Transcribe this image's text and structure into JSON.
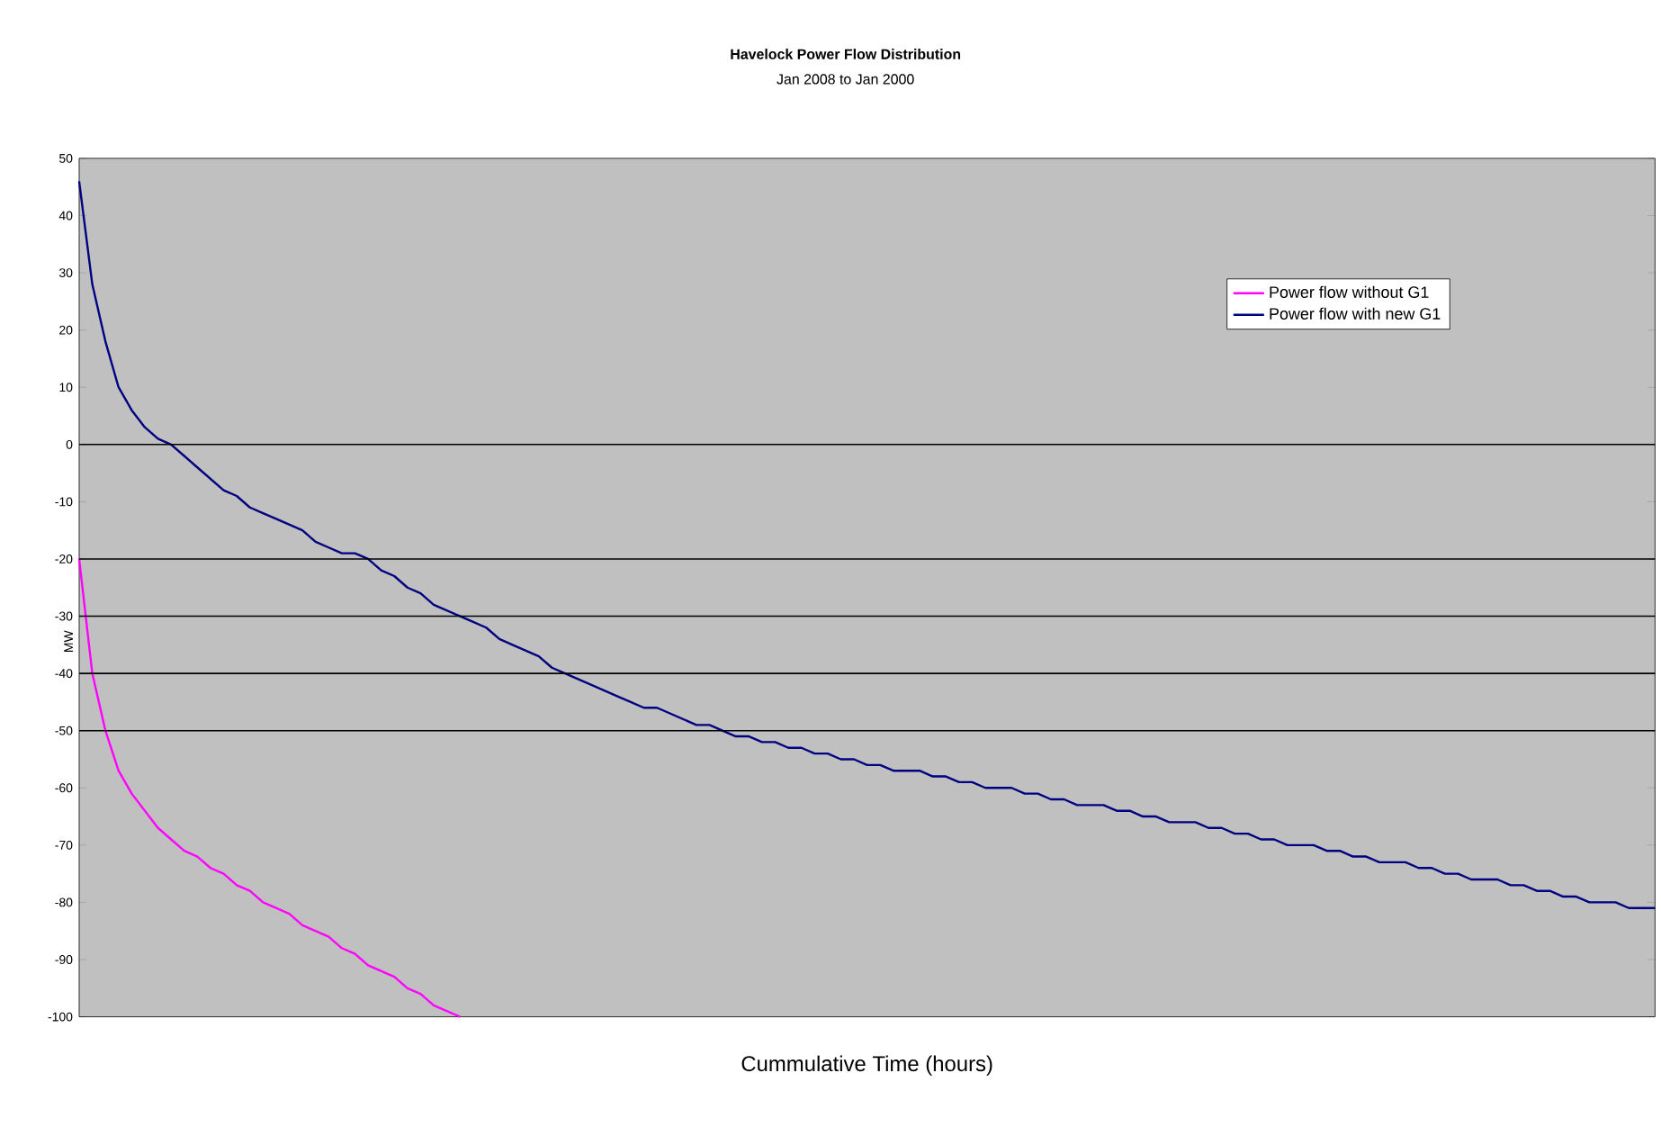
{
  "chart_data": {
    "type": "line",
    "title": "Havelock Power Flow Distribution",
    "subtitle": "Jan 2008 to Jan 2000",
    "xlabel": "Cummulative Time (hours)",
    "ylabel": "MW",
    "categories": [
      null,
      null,
      null,
      null,
      null,
      null,
      null,
      null,
      null,
      null,
      null,
      null,
      null,
      null,
      null,
      null,
      null,
      null,
      null,
      null,
      null,
      null,
      null,
      null,
      null,
      null,
      null,
      null,
      null,
      null,
      null,
      null,
      null,
      null,
      null,
      null,
      null,
      null,
      null,
      null,
      null,
      null,
      null,
      null,
      null,
      null,
      null,
      null,
      null,
      null,
      null,
      null,
      null,
      null,
      null,
      null,
      null,
      null,
      null,
      null,
      null,
      null,
      null,
      null,
      null,
      null,
      null,
      null,
      null,
      null,
      null,
      null,
      null,
      null,
      null,
      null,
      null,
      null,
      null,
      null,
      null,
      null,
      null,
      null,
      null,
      null,
      null,
      null,
      null,
      null,
      null,
      null,
      null,
      null,
      null,
      null,
      null,
      null,
      null,
      null,
      null,
      null,
      null,
      null,
      null,
      null,
      null,
      null,
      null,
      null,
      null,
      null,
      null,
      null,
      null,
      null,
      null,
      null,
      null,
      null,
      null
    ],
    "series": [
      {
        "name": "Power flow without G1",
        "color": "#ff00ff",
        "values": [
          -20,
          -40,
          -50,
          -57,
          -61,
          -64,
          -67,
          -69,
          -71,
          -72,
          -74,
          -75,
          -77,
          -78,
          -80,
          -81,
          -82,
          -84,
          -85,
          -86,
          -88,
          -89,
          -91,
          -92,
          -93,
          -95,
          -96,
          -98,
          -99,
          -100,
          null,
          null,
          null,
          null,
          null,
          null,
          null,
          null,
          null,
          null,
          null,
          null,
          null,
          null,
          null,
          null,
          null,
          null,
          null,
          null,
          null,
          null,
          null,
          null,
          null,
          null,
          null,
          null,
          null,
          null,
          null,
          null,
          null,
          null,
          null,
          null,
          null,
          null,
          null,
          null,
          null,
          null,
          null,
          null,
          null,
          null,
          null,
          null,
          null,
          null,
          null,
          null,
          null,
          null,
          null,
          null,
          null,
          null,
          null,
          null,
          null,
          null,
          null,
          null,
          null,
          null,
          null,
          null,
          null,
          null,
          null,
          null,
          null,
          null,
          null,
          null,
          null,
          null,
          null,
          null,
          null,
          null,
          null,
          null,
          null,
          null,
          null,
          null,
          null,
          null,
          null
        ]
      },
      {
        "name": "Power flow with new G1",
        "color": "#000080",
        "values": [
          46,
          28,
          18,
          10,
          6,
          3,
          1,
          0,
          -2,
          -4,
          -6,
          -8,
          -9,
          -11,
          -12,
          -13,
          -14,
          -15,
          -17,
          -18,
          -19,
          -19,
          -20,
          -22,
          -23,
          -25,
          -26,
          -28,
          -29,
          -30,
          -31,
          -32,
          -34,
          -35,
          -36,
          -37,
          -39,
          -40,
          -41,
          -42,
          -43,
          -44,
          -45,
          -46,
          -46,
          -47,
          -48,
          -49,
          -49,
          -50,
          -51,
          -51,
          -52,
          -52,
          -53,
          -53,
          -54,
          -54,
          -55,
          -55,
          -56,
          -56,
          -57,
          -57,
          -57,
          -58,
          -58,
          -59,
          -59,
          -60,
          -60,
          -60,
          -61,
          -61,
          -62,
          -62,
          -63,
          -63,
          -63,
          -64,
          -64,
          -65,
          -65,
          -66,
          -66,
          -66,
          -67,
          -67,
          -68,
          -68,
          -69,
          -69,
          -70,
          -70,
          -70,
          -71,
          -71,
          -72,
          -72,
          -73,
          -73,
          -73,
          -74,
          -74,
          -75,
          -75,
          -76,
          -76,
          -76,
          -77,
          -77,
          -78,
          -78,
          -79,
          -79,
          -80,
          -80,
          -80,
          -81,
          -81,
          -81
        ]
      }
    ],
    "ylim": [
      -100,
      50
    ],
    "yticks": [
      -100,
      -90,
      -80,
      -70,
      -60,
      -50,
      -40,
      -30,
      -20,
      -10,
      0,
      10,
      20,
      30,
      40,
      50
    ],
    "ref_lines": [
      {
        "axis": "y",
        "value": 0,
        "color": "#000000"
      },
      {
        "axis": "y",
        "value": -20,
        "color": "#000000"
      },
      {
        "axis": "y",
        "value": -30,
        "color": "#000000"
      },
      {
        "axis": "y",
        "value": -40,
        "color": "#000000"
      },
      {
        "axis": "y",
        "value": -50,
        "color": "#000000"
      }
    ],
    "legend": "top right",
    "tick_labels": "y",
    "marker": "none",
    "line_style": "solid",
    "grid": false
  }
}
